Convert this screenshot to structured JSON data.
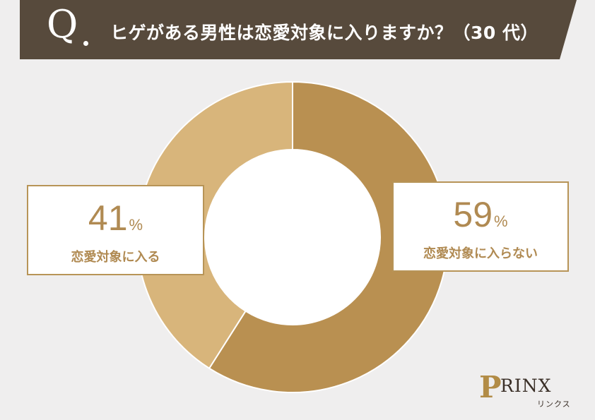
{
  "header": {
    "q_letter": "Q",
    "question": "ヒゲがある男性は恋愛対象に入りますか？（30 代）"
  },
  "chart_data": {
    "type": "pie",
    "categories": [
      "恋愛対象に入らない",
      "恋愛対象に入る"
    ],
    "values": [
      59,
      41
    ],
    "value_labels": [
      "59",
      "41"
    ],
    "unit": "%",
    "colors": [
      "#b99051",
      "#d8b57b"
    ]
  },
  "logo": {
    "mark": "P",
    "name": "RINX",
    "sub": "リンクス"
  }
}
